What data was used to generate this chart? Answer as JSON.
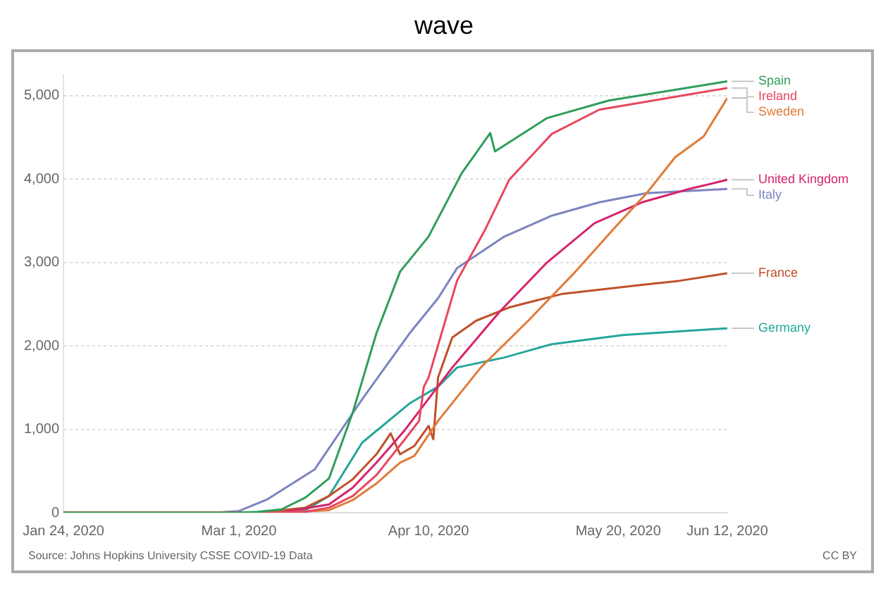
{
  "chart_data": {
    "type": "line",
    "title": "wave",
    "xlim": [
      "2020-01-24",
      "2020-06-12"
    ],
    "xticks": [
      {
        "value": "2020-01-24",
        "label": "Jan 24, 2020"
      },
      {
        "value": "2020-03-01",
        "label": "Mar 1, 2020"
      },
      {
        "value": "2020-04-10",
        "label": "Apr 10, 2020"
      },
      {
        "value": "2020-05-20",
        "label": "May 20, 2020"
      },
      {
        "value": "2020-06-12",
        "label": "Jun 12, 2020"
      }
    ],
    "ylim": [
      0,
      5250
    ],
    "yticks": [
      {
        "value": 0,
        "label": "0"
      },
      {
        "value": 1000,
        "label": "1,000"
      },
      {
        "value": 2000,
        "label": "2,000"
      },
      {
        "value": 3000,
        "label": "3,000"
      },
      {
        "value": 4000,
        "label": "4,000"
      },
      {
        "value": 5000,
        "label": "5,000"
      }
    ],
    "grid": "y",
    "legend": false,
    "marker": "none",
    "line_style": "solid",
    "series": [
      {
        "name": "Spain",
        "color": "#2e9e5b",
        "x": [
          "2020-01-24",
          "2020-03-01",
          "2020-03-05",
          "2020-03-10",
          "2020-03-15",
          "2020-03-20",
          "2020-03-25",
          "2020-03-30",
          "2020-04-04",
          "2020-04-10",
          "2020-04-17",
          "2020-04-23",
          "2020-04-24",
          "2020-05-05",
          "2020-05-18",
          "2020-06-12"
        ],
        "values": [
          0,
          0,
          10,
          40,
          180,
          410,
          1200,
          2150,
          2890,
          3310,
          4070,
          4550,
          4330,
          4730,
          4940,
          5170
        ]
      },
      {
        "name": "Ireland",
        "color": "#e8475f",
        "x": [
          "2020-01-24",
          "2020-03-10",
          "2020-03-15",
          "2020-03-20",
          "2020-03-25",
          "2020-03-30",
          "2020-04-05",
          "2020-04-08",
          "2020-04-09",
          "2020-04-10",
          "2020-04-16",
          "2020-04-22",
          "2020-04-27",
          "2020-05-06",
          "2020-05-16",
          "2020-06-12"
        ],
        "values": [
          0,
          0,
          10,
          60,
          200,
          450,
          880,
          1100,
          1510,
          1620,
          2780,
          3400,
          3990,
          4540,
          4830,
          5090
        ]
      },
      {
        "name": "Sweden",
        "color": "#e07b39",
        "x": [
          "2020-01-24",
          "2020-03-10",
          "2020-03-20",
          "2020-03-25",
          "2020-03-30",
          "2020-04-04",
          "2020-04-07",
          "2020-04-12",
          "2020-04-21",
          "2020-05-01",
          "2020-05-11",
          "2020-05-19",
          "2020-05-26",
          "2020-06-01",
          "2020-06-07",
          "2020-06-12"
        ],
        "values": [
          0,
          0,
          30,
          150,
          350,
          600,
          680,
          1100,
          1740,
          2300,
          2890,
          3400,
          3830,
          4260,
          4510,
          4970
        ]
      },
      {
        "name": "United Kingdom",
        "color": "#d6246e",
        "x": [
          "2020-01-24",
          "2020-03-10",
          "2020-03-20",
          "2020-03-25",
          "2020-03-30",
          "2020-04-05",
          "2020-04-15",
          "2020-04-25",
          "2020-05-05",
          "2020-05-15",
          "2020-05-25",
          "2020-06-04",
          "2020-06-12"
        ],
        "values": [
          0,
          0,
          100,
          300,
          600,
          990,
          1740,
          2410,
          3000,
          3470,
          3720,
          3880,
          3990
        ]
      },
      {
        "name": "Italy",
        "color": "#7c84c0",
        "x": [
          "2020-01-24",
          "2020-02-25",
          "2020-03-01",
          "2020-03-07",
          "2020-03-17",
          "2020-03-27",
          "2020-04-06",
          "2020-04-12",
          "2020-04-16",
          "2020-04-26",
          "2020-05-06",
          "2020-05-16",
          "2020-05-26",
          "2020-06-12"
        ],
        "values": [
          0,
          0,
          20,
          160,
          520,
          1360,
          2150,
          2570,
          2930,
          3310,
          3560,
          3720,
          3830,
          3880
        ]
      },
      {
        "name": "France",
        "color": "#c0502a",
        "x": [
          "2020-01-24",
          "2020-03-05",
          "2020-03-15",
          "2020-03-20",
          "2020-03-25",
          "2020-03-30",
          "2020-04-02",
          "2020-04-04",
          "2020-04-07",
          "2020-04-10",
          "2020-04-11",
          "2020-04-12",
          "2020-04-15",
          "2020-04-20",
          "2020-04-27",
          "2020-05-08",
          "2020-05-25",
          "2020-06-02",
          "2020-06-12"
        ],
        "values": [
          0,
          0,
          60,
          200,
          400,
          700,
          950,
          700,
          800,
          1040,
          880,
          1620,
          2100,
          2300,
          2460,
          2620,
          2730,
          2780,
          2870
        ]
      },
      {
        "name": "Germany",
        "color": "#26a69a",
        "x": [
          "2020-01-24",
          "2020-03-05",
          "2020-03-15",
          "2020-03-20",
          "2020-03-27",
          "2020-04-06",
          "2020-04-12",
          "2020-04-16",
          "2020-04-26",
          "2020-05-06",
          "2020-05-21",
          "2020-06-12"
        ],
        "values": [
          0,
          0,
          30,
          200,
          840,
          1310,
          1510,
          1740,
          1860,
          2020,
          2130,
          2210
        ]
      }
    ],
    "annotations": [
      "Source: Johns Hopkins University CSSE COVID-19 Data",
      "CC BY"
    ]
  }
}
